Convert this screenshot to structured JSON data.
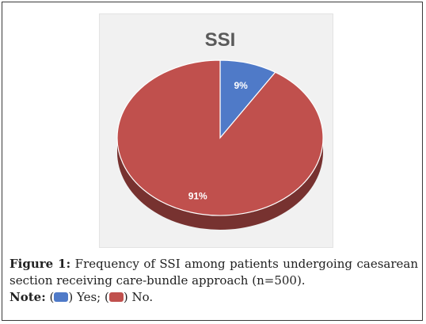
{
  "chart_data": {
    "type": "pie",
    "title": "SSI",
    "slices": [
      {
        "label": "Yes",
        "value": 9,
        "data_label": "9%",
        "color": "#4f7ac8"
      },
      {
        "label": "No",
        "value": 91,
        "data_label": "91%",
        "color": "#c0504d"
      }
    ],
    "style": "3d"
  },
  "caption": {
    "figure_label": "Figure 1:",
    "figure_text": "Frequency of SSI among patients undergoing caesarean section receiving care-bundle approach (n=500).",
    "note_label": "Note:",
    "note_open": "(",
    "yes_text": ") Yes; (",
    "no_text": ") No."
  }
}
